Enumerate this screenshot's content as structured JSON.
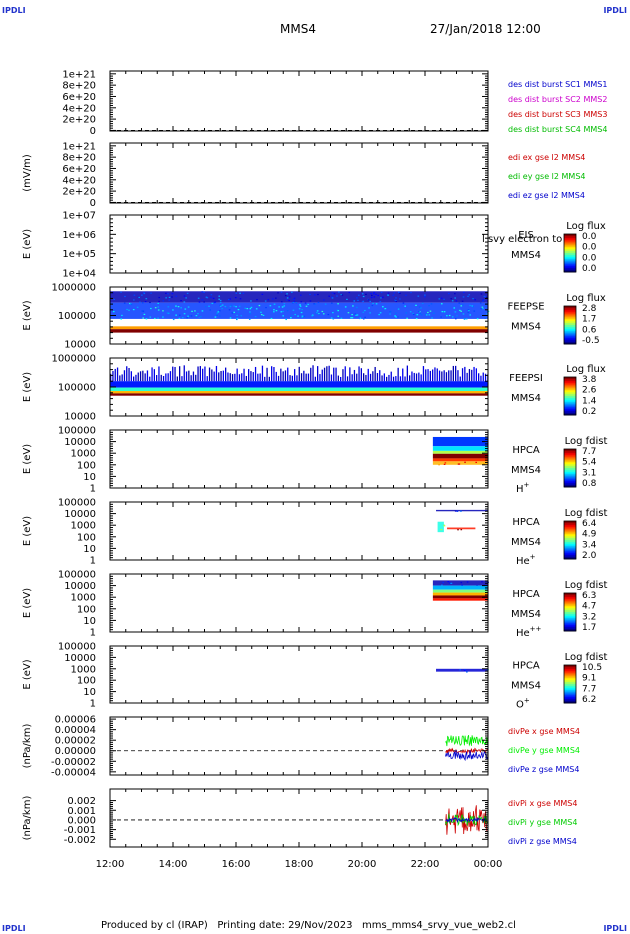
{
  "header": {
    "corner_tl": "IPDLI",
    "corner_tr": "IPDLI",
    "spacecraft": "MMS4",
    "datetime": "27/Jan/2018 12:00"
  },
  "footer": {
    "text": "Produced by cl (IRAP)   Printing date: 29/Nov/2023   mms_mms4_srvy_vue_web2.cl",
    "corner_bl": "IPDLI",
    "corner_br": "IPDLI"
  },
  "chart_data": {
    "type": "line",
    "x_axis": {
      "ticks": [
        "12:00",
        "14:00",
        "16:00",
        "18:00",
        "20:00",
        "22:00",
        "00:00"
      ]
    },
    "panels": [
      {
        "id": "des-dist",
        "kind": "line",
        "ylabel": "",
        "ytick_labels": [
          "1e+21",
          "8e+20",
          "6e+20",
          "4e+20",
          "2e+20",
          "0"
        ],
        "ytick_values": [
          1e+21,
          8e+20,
          6e+20,
          4e+20,
          2e+20,
          0
        ],
        "ylim": [
          -1e+19,
          1.05e+21
        ],
        "zero_line": true,
        "series": [
          {
            "name": "des dist burst SC1 MMS1",
            "color": "#0000cc",
            "values": []
          },
          {
            "name": "des dist burst SC2 MMS2",
            "color": "#cc00cc",
            "values": []
          },
          {
            "name": "des dist burst SC3 MMS3",
            "color": "#cc0000",
            "values": []
          },
          {
            "name": "des dist burst SC4 MMS4",
            "color": "#00bb00",
            "values": []
          }
        ]
      },
      {
        "id": "edi-e",
        "kind": "line",
        "ylabel": "(mV/m)",
        "ytick_labels": [
          "1e+21",
          "8e+20",
          "6e+20",
          "4e+20",
          "2e+20",
          "0"
        ],
        "ytick_values": [
          1e+21,
          8e+20,
          6e+20,
          4e+20,
          2e+20,
          0
        ],
        "ylim": [
          -1e+19,
          1.05e+21
        ],
        "zero_line": true,
        "series": [
          {
            "name": "edi ex gse l2 MMS4",
            "color": "#cc0000",
            "values": []
          },
          {
            "name": "edi ey gse l2 MMS4",
            "color": "#00bb00",
            "values": []
          },
          {
            "name": "edi ez gse l2 MMS4",
            "color": "#0000cc",
            "values": []
          }
        ]
      },
      {
        "id": "eis",
        "kind": "spectrogram",
        "ylabel": "E (eV)",
        "ytick_labels": [
          "1e+07",
          "1e+06",
          "1e+05",
          "1e+04"
        ],
        "log_range": [
          4,
          7
        ],
        "instrument": [
          "EIS",
          "MMS4"
        ],
        "overlay_text": "l svy electron to",
        "colorbar": {
          "title": "Log flux",
          "ticks": [
            "0.0",
            "0.0",
            "0.0",
            "0.0"
          ]
        },
        "bands": []
      },
      {
        "id": "feeps-e",
        "kind": "spectrogram",
        "ylabel": "E (eV)",
        "ytick_labels": [
          "1000000",
          "100000",
          "10000"
        ],
        "log_range": [
          4,
          6
        ],
        "instrument": [
          "FEEPSE",
          "MMS4"
        ],
        "colorbar": {
          "title": "Log flux",
          "ticks": [
            "2.8",
            "1.7",
            "0.6",
            "-0.5"
          ]
        },
        "bands": [
          {
            "t0": 0,
            "t1": 12,
            "e_lo": 5.45,
            "e_hi": 5.85,
            "level": 0.05,
            "texture": "speck"
          },
          {
            "t0": 0,
            "t1": 12,
            "e_lo": 4.88,
            "e_hi": 5.45,
            "level": 0.18,
            "texture": "speck"
          },
          {
            "t0": 0,
            "t1": 12,
            "e_lo": 4.52,
            "e_hi": 4.62,
            "level": 0.72
          },
          {
            "t0": 0,
            "t1": 12,
            "e_lo": 4.4,
            "e_hi": 4.52,
            "level": 1.0
          }
        ]
      },
      {
        "id": "feeps-i",
        "kind": "spectrogram",
        "ylabel": "E (eV)",
        "ytick_labels": [
          "1000000",
          "100000",
          "10000"
        ],
        "log_range": [
          4,
          6
        ],
        "instrument": [
          "FEEPSI",
          "MMS4"
        ],
        "colorbar": {
          "title": "Log flux",
          "ticks": [
            "3.8",
            "2.6",
            "1.4",
            "0.2"
          ]
        },
        "bands": [
          {
            "t0": 0,
            "t1": 12,
            "e_lo": 5.2,
            "e_hi": 5.75,
            "level": 0.0,
            "texture": "dots"
          },
          {
            "t0": 0,
            "t1": 12,
            "e_lo": 4.98,
            "e_hi": 5.2,
            "level": 0.15
          },
          {
            "t0": 0,
            "t1": 12,
            "e_lo": 4.86,
            "e_hi": 4.98,
            "level": 0.42
          },
          {
            "t0": 0,
            "t1": 12,
            "e_lo": 4.78,
            "e_hi": 4.86,
            "level": 0.7
          },
          {
            "t0": 0,
            "t1": 12,
            "e_lo": 4.7,
            "e_hi": 4.78,
            "level": 1.0
          }
        ]
      },
      {
        "id": "hpca-h",
        "kind": "spectrogram",
        "ylabel": "E (eV)",
        "ytick_labels": [
          "100000",
          "10000",
          "1000",
          "100",
          "10",
          "1"
        ],
        "log_range": [
          0,
          5
        ],
        "instrument": [
          "HPCA",
          "MMS4"
        ],
        "species": "H",
        "charge": "+",
        "colorbar": {
          "title": "Log fdist",
          "ticks": [
            "7.7",
            "5.4",
            "3.1",
            "0.8"
          ]
        },
        "bands": [
          {
            "t0": 10.25,
            "t1": 12,
            "e_lo": 3.6,
            "e_hi": 4.4,
            "level": 0.18
          },
          {
            "t0": 10.25,
            "t1": 12,
            "e_lo": 3.2,
            "e_hi": 3.6,
            "level": 0.35
          },
          {
            "t0": 10.25,
            "t1": 12,
            "e_lo": 2.95,
            "e_hi": 3.2,
            "level": 0.55
          },
          {
            "t0": 10.25,
            "t1": 12,
            "e_lo": 2.55,
            "e_hi": 2.95,
            "level": 1.0
          },
          {
            "t0": 10.25,
            "t1": 12,
            "e_lo": 2.3,
            "e_hi": 2.55,
            "level": 0.82
          },
          {
            "t0": 10.25,
            "t1": 12,
            "e_lo": 2.0,
            "e_hi": 2.3,
            "level": 0.7,
            "texture": "speck"
          }
        ]
      },
      {
        "id": "hpca-he",
        "kind": "spectrogram",
        "ylabel": "E (eV)",
        "ytick_labels": [
          "100000",
          "10000",
          "1000",
          "100",
          "10",
          "1"
        ],
        "log_range": [
          0,
          5
        ],
        "instrument": [
          "HPCA",
          "MMS4"
        ],
        "species": "He",
        "charge": "+",
        "colorbar": {
          "title": "Log fdist",
          "ticks": [
            "6.4",
            "4.9",
            "3.4",
            "2.0"
          ]
        },
        "bands": [
          {
            "t0": 10.35,
            "t1": 12,
            "e_lo": 4.2,
            "e_hi": 4.32,
            "level": 0.05,
            "texture": "speck"
          },
          {
            "t0": 10.4,
            "t1": 10.6,
            "e_lo": 2.4,
            "e_hi": 3.3,
            "level": 0.4,
            "texture": "speck"
          },
          {
            "t0": 10.7,
            "t1": 11.6,
            "e_lo": 2.65,
            "e_hi": 2.8,
            "level": 0.85,
            "texture": "speck"
          }
        ]
      },
      {
        "id": "hpca-he2",
        "kind": "spectrogram",
        "ylabel": "E (eV)",
        "ytick_labels": [
          "100000",
          "10000",
          "1000",
          "100",
          "10",
          "1"
        ],
        "log_range": [
          0,
          5
        ],
        "instrument": [
          "HPCA",
          "MMS4"
        ],
        "species": "He",
        "charge": "++",
        "colorbar": {
          "title": "Log fdist",
          "ticks": [
            "6.3",
            "4.7",
            "3.2",
            "1.7"
          ]
        },
        "bands": [
          {
            "t0": 10.25,
            "t1": 12,
            "e_lo": 4.0,
            "e_hi": 4.45,
            "level": 0.05,
            "texture": "speck"
          },
          {
            "t0": 10.25,
            "t1": 12,
            "e_lo": 3.65,
            "e_hi": 4.0,
            "level": 0.3
          },
          {
            "t0": 10.25,
            "t1": 12,
            "e_lo": 3.4,
            "e_hi": 3.65,
            "level": 0.5
          },
          {
            "t0": 10.25,
            "t1": 12,
            "e_lo": 3.15,
            "e_hi": 3.4,
            "level": 0.7
          },
          {
            "t0": 10.25,
            "t1": 12,
            "e_lo": 2.9,
            "e_hi": 3.15,
            "level": 1.0
          },
          {
            "t0": 10.25,
            "t1": 12,
            "e_lo": 2.7,
            "e_hi": 2.9,
            "level": 0.85
          }
        ]
      },
      {
        "id": "hpca-o",
        "kind": "spectrogram",
        "ylabel": "E (eV)",
        "ytick_labels": [
          "100000",
          "10000",
          "1000",
          "100",
          "10",
          "1"
        ],
        "log_range": [
          0,
          5
        ],
        "instrument": [
          "HPCA",
          "MMS4"
        ],
        "species": "O",
        "charge": "+",
        "colorbar": {
          "title": "Log fdist",
          "ticks": [
            "10.5",
            "9.1",
            "7.7",
            "6.2"
          ]
        },
        "bands": [
          {
            "t0": 10.35,
            "t1": 12,
            "e_lo": 2.75,
            "e_hi": 3.0,
            "level": 0.08,
            "texture": "speck"
          }
        ]
      },
      {
        "id": "divpe",
        "kind": "line",
        "ylabel": "(nPa/km)",
        "ytick_labels": [
          "0.00006",
          "0.00004",
          "0.00002",
          "0.00000",
          "-0.00002",
          "-0.00004"
        ],
        "ytick_values": [
          6e-05,
          4e-05,
          2e-05,
          0,
          -2e-05,
          -4e-05
        ],
        "ylim": [
          -4.6e-05,
          6.4e-05
        ],
        "zero_line": true,
        "series": [
          {
            "name": "divPe x gse MMS4",
            "color": "#cc0000",
            "t0": 10.65,
            "t1": 12,
            "center": 0.0,
            "amp": 5e-06
          },
          {
            "name": "divPe y gse MMS4",
            "color": "#00ee00",
            "t0": 10.65,
            "t1": 12,
            "center": 2e-05,
            "amp": 1.2e-05
          },
          {
            "name": "divPe z gse MMS4",
            "color": "#0000cc",
            "t0": 10.65,
            "t1": 12,
            "center": -8e-06,
            "amp": 1e-05
          }
        ]
      },
      {
        "id": "divpi",
        "kind": "line",
        "ylabel": "(nPa/km)",
        "ytick_labels": [
          "0.002",
          "0.001",
          "0.000",
          "-0.001",
          "-0.002"
        ],
        "ytick_values": [
          0.002,
          0.001,
          0.0,
          -0.001,
          -0.002
        ],
        "ylim": [
          -0.0028,
          0.0032
        ],
        "zero_line": true,
        "series": [
          {
            "name": "divPi x gse MMS4",
            "color": "#cc0000",
            "t0": 10.65,
            "t1": 12,
            "center": 0.0,
            "amp": 0.0016
          },
          {
            "name": "divPi y gse MMS4",
            "color": "#00cc00",
            "t0": 10.65,
            "t1": 12,
            "center": 0.0,
            "amp": 0.0007
          },
          {
            "name": "divPi z gse MMS4",
            "color": "#0000cc",
            "t0": 10.65,
            "t1": 12,
            "center": 0.0,
            "amp": 0.00025
          }
        ]
      }
    ]
  }
}
